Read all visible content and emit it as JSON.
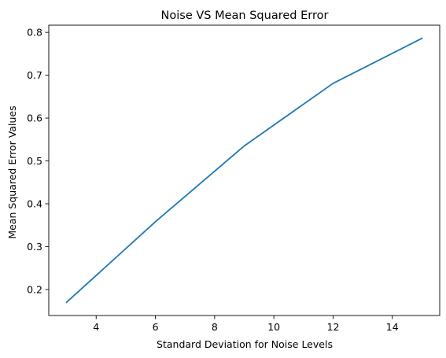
{
  "chart_data": {
    "type": "line",
    "title": "Noise VS Mean Squared Error",
    "xlabel": "Standard Deviation for Noise Levels",
    "ylabel": "Mean Squared Error Values",
    "x": [
      3,
      6,
      9,
      12,
      15
    ],
    "series": [
      {
        "values": [
          0.17,
          0.358,
          0.535,
          0.681,
          0.786
        ],
        "color": "#1f77b4"
      }
    ],
    "xlim": [
      2.4,
      15.6
    ],
    "ylim": [
      0.1392,
      0.8168
    ],
    "xticks": [
      4,
      6,
      8,
      10,
      12,
      14
    ],
    "xtick_labels": [
      "4",
      "6",
      "8",
      "10",
      "12",
      "14"
    ],
    "yticks": [
      0.2,
      0.3,
      0.4,
      0.5,
      0.6,
      0.7,
      0.8
    ],
    "ytick_labels": [
      "0.2",
      "0.3",
      "0.4",
      "0.5",
      "0.6",
      "0.7",
      "0.8"
    ],
    "grid": false,
    "legend": "none"
  }
}
